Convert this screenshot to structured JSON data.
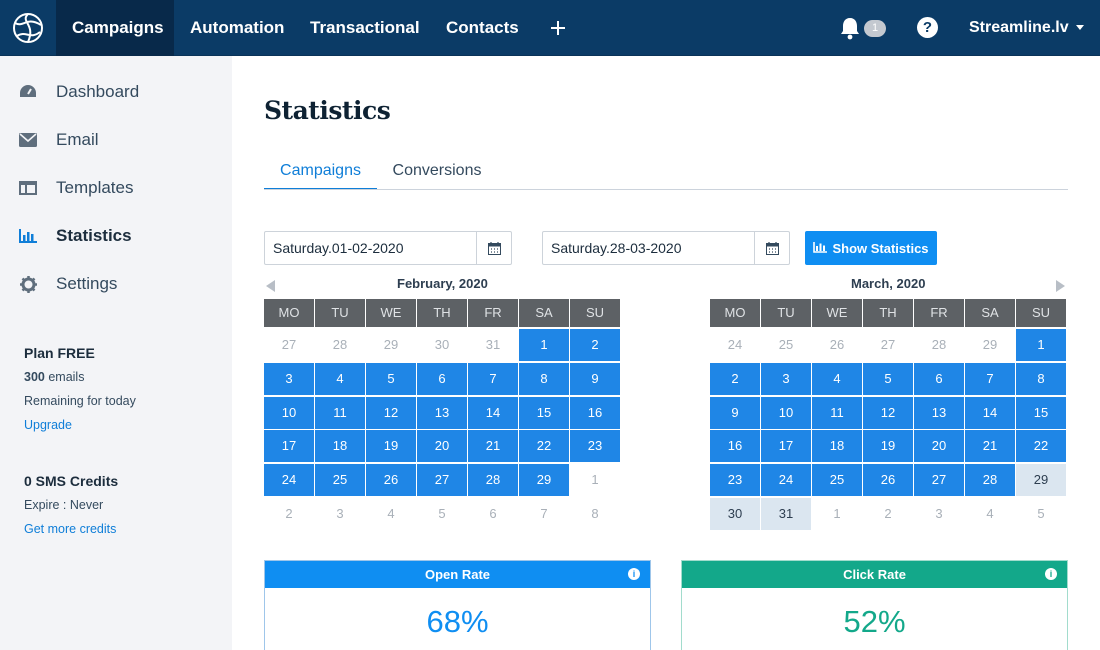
{
  "topnav": {
    "items": [
      "Campaigns",
      "Automation",
      "Transactional",
      "Contacts"
    ],
    "notifications_count": "1",
    "help_glyph": "?",
    "account": "Streamline.lv"
  },
  "sidebar": {
    "items": [
      {
        "label": "Dashboard",
        "icon": "gauge-icon"
      },
      {
        "label": "Email",
        "icon": "envelope-icon"
      },
      {
        "label": "Templates",
        "icon": "template-icon"
      },
      {
        "label": "Statistics",
        "icon": "bar-chart-icon"
      },
      {
        "label": "Settings",
        "icon": "gear-icon"
      }
    ],
    "active": "Statistics",
    "plan": {
      "title": "Plan FREE",
      "emails_count": "300",
      "emails_unit": "emails",
      "remaining": "Remaining for today",
      "upgrade": "Upgrade"
    },
    "sms": {
      "title": "0 SMS Credits",
      "expire": "Expire : Never",
      "get_more": "Get more credits"
    }
  },
  "page": {
    "title": "Statistics",
    "tabs": [
      "Campaigns",
      "Conversions"
    ],
    "active_tab": "Campaigns",
    "date_from": "Saturday.01-02-2020",
    "date_to": "Saturday.28-03-2020",
    "show_button": "Show Statistics"
  },
  "calendars": {
    "weekdays": [
      "MO",
      "TU",
      "WE",
      "TH",
      "FR",
      "SA",
      "SU"
    ],
    "months": [
      {
        "title": "February, 2020",
        "weeks": [
          [
            {
              "d": "27",
              "s": "out"
            },
            {
              "d": "28",
              "s": "out"
            },
            {
              "d": "29",
              "s": "out"
            },
            {
              "d": "30",
              "s": "out"
            },
            {
              "d": "31",
              "s": "out"
            },
            {
              "d": "1",
              "s": "sel"
            },
            {
              "d": "2",
              "s": "sel"
            }
          ],
          [
            {
              "d": "3",
              "s": "sel"
            },
            {
              "d": "4",
              "s": "sel"
            },
            {
              "d": "5",
              "s": "sel"
            },
            {
              "d": "6",
              "s": "sel"
            },
            {
              "d": "7",
              "s": "sel"
            },
            {
              "d": "8",
              "s": "sel"
            },
            {
              "d": "9",
              "s": "sel"
            }
          ],
          [
            {
              "d": "10",
              "s": "sel"
            },
            {
              "d": "11",
              "s": "sel"
            },
            {
              "d": "12",
              "s": "sel"
            },
            {
              "d": "13",
              "s": "sel"
            },
            {
              "d": "14",
              "s": "sel"
            },
            {
              "d": "15",
              "s": "sel"
            },
            {
              "d": "16",
              "s": "sel"
            }
          ],
          [
            {
              "d": "17",
              "s": "sel"
            },
            {
              "d": "18",
              "s": "sel"
            },
            {
              "d": "19",
              "s": "sel"
            },
            {
              "d": "20",
              "s": "sel"
            },
            {
              "d": "21",
              "s": "sel"
            },
            {
              "d": "22",
              "s": "sel"
            },
            {
              "d": "23",
              "s": "sel"
            }
          ],
          [
            {
              "d": "24",
              "s": "sel"
            },
            {
              "d": "25",
              "s": "sel"
            },
            {
              "d": "26",
              "s": "sel"
            },
            {
              "d": "27",
              "s": "sel"
            },
            {
              "d": "28",
              "s": "sel"
            },
            {
              "d": "29",
              "s": "sel"
            },
            {
              "d": "1",
              "s": "out"
            }
          ],
          [
            {
              "d": "2",
              "s": "out"
            },
            {
              "d": "3",
              "s": "out"
            },
            {
              "d": "4",
              "s": "out"
            },
            {
              "d": "5",
              "s": "out"
            },
            {
              "d": "6",
              "s": "out"
            },
            {
              "d": "7",
              "s": "out"
            },
            {
              "d": "8",
              "s": "out"
            }
          ]
        ]
      },
      {
        "title": "March, 2020",
        "weeks": [
          [
            {
              "d": "24",
              "s": "out"
            },
            {
              "d": "25",
              "s": "out"
            },
            {
              "d": "26",
              "s": "out"
            },
            {
              "d": "27",
              "s": "out"
            },
            {
              "d": "28",
              "s": "out"
            },
            {
              "d": "29",
              "s": "out"
            },
            {
              "d": "1",
              "s": "sel"
            }
          ],
          [
            {
              "d": "2",
              "s": "sel"
            },
            {
              "d": "3",
              "s": "sel"
            },
            {
              "d": "4",
              "s": "sel"
            },
            {
              "d": "5",
              "s": "sel"
            },
            {
              "d": "6",
              "s": "sel"
            },
            {
              "d": "7",
              "s": "sel"
            },
            {
              "d": "8",
              "s": "sel"
            }
          ],
          [
            {
              "d": "9",
              "s": "sel"
            },
            {
              "d": "10",
              "s": "sel"
            },
            {
              "d": "11",
              "s": "sel"
            },
            {
              "d": "12",
              "s": "sel"
            },
            {
              "d": "13",
              "s": "sel"
            },
            {
              "d": "14",
              "s": "sel"
            },
            {
              "d": "15",
              "s": "sel"
            }
          ],
          [
            {
              "d": "16",
              "s": "sel"
            },
            {
              "d": "17",
              "s": "sel"
            },
            {
              "d": "18",
              "s": "sel"
            },
            {
              "d": "19",
              "s": "sel"
            },
            {
              "d": "20",
              "s": "sel"
            },
            {
              "d": "21",
              "s": "sel"
            },
            {
              "d": "22",
              "s": "sel"
            }
          ],
          [
            {
              "d": "23",
              "s": "sel"
            },
            {
              "d": "24",
              "s": "sel"
            },
            {
              "d": "25",
              "s": "sel"
            },
            {
              "d": "26",
              "s": "sel"
            },
            {
              "d": "27",
              "s": "sel"
            },
            {
              "d": "28",
              "s": "sel"
            },
            {
              "d": "29",
              "s": "light"
            }
          ],
          [
            {
              "d": "30",
              "s": "light"
            },
            {
              "d": "31",
              "s": "light"
            },
            {
              "d": "1",
              "s": "out"
            },
            {
              "d": "2",
              "s": "out"
            },
            {
              "d": "3",
              "s": "out"
            },
            {
              "d": "4",
              "s": "out"
            },
            {
              "d": "5",
              "s": "out"
            }
          ]
        ]
      }
    ]
  },
  "stats": [
    {
      "label": "Open Rate",
      "value": "68%",
      "color": "#0f8ef2",
      "icon": "info-icon"
    },
    {
      "label": "Click Rate",
      "value": "52%",
      "color": "#13a88a",
      "icon": "info-icon"
    }
  ],
  "colors": {
    "navbar": "#0b3b66",
    "accent": "#0f8ef2",
    "selected_day": "#1f86e6"
  }
}
